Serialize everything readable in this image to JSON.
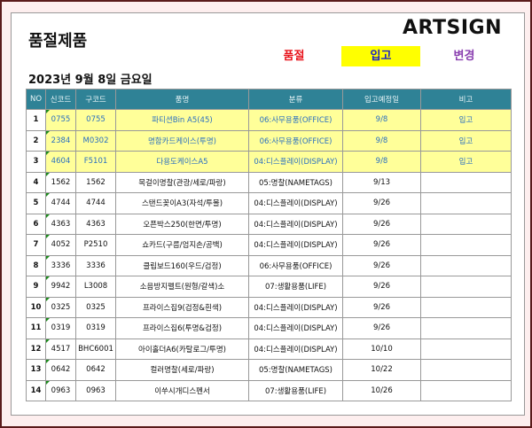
{
  "title": "품절제품",
  "brand": "ARTSIGN",
  "legend": {
    "soldout": "품절",
    "restock": "입고",
    "change": "변경"
  },
  "colors": {
    "soldout": "#e8141c",
    "restock_bg": "#ffff00",
    "restock_text": "#1a20c8",
    "change": "#8a3fb0",
    "header": "#2f8296",
    "highlight": "#ffff99"
  },
  "date": "2023년 9월 8일 금요일",
  "table": {
    "headers": [
      "NO",
      "신코드",
      "구코드",
      "품명",
      "분류",
      "입고예정일",
      "비고"
    ],
    "rows": [
      {
        "no": "1",
        "new": "0755",
        "old": "0755",
        "name": "파티션Bin A5(45)",
        "cat": "06:사무용품(OFFICE)",
        "date": "9/8",
        "note": "입고",
        "hl": true
      },
      {
        "no": "2",
        "new": "2384",
        "old": "M0302",
        "name": "명함카드케이스(투명)",
        "cat": "06:사무용품(OFFICE)",
        "date": "9/8",
        "note": "입고",
        "hl": true
      },
      {
        "no": "3",
        "new": "4604",
        "old": "F5101",
        "name": "다용도케이스A5",
        "cat": "04:디스플레이(DISPLAY)",
        "date": "9/8",
        "note": "입고",
        "hl": true
      },
      {
        "no": "4",
        "new": "1562",
        "old": "1562",
        "name": "목걸이명찰(관광/세로/파랑)",
        "cat": "05:명찰(NAMETAGS)",
        "date": "9/13",
        "note": ""
      },
      {
        "no": "5",
        "new": "4744",
        "old": "4744",
        "name": "스탠드꽂이A3(자석/투몰)",
        "cat": "04:디스플레이(DISPLAY)",
        "date": "9/26",
        "note": ""
      },
      {
        "no": "6",
        "new": "4363",
        "old": "4363",
        "name": "오픈박스250(한면/투명)",
        "cat": "04:디스플레이(DISPLAY)",
        "date": "9/26",
        "note": ""
      },
      {
        "no": "7",
        "new": "4052",
        "old": "P2510",
        "name": "쇼카드(구름/엄지손/공백)",
        "cat": "04:디스플레이(DISPLAY)",
        "date": "9/26",
        "note": ""
      },
      {
        "no": "8",
        "new": "3336",
        "old": "3336",
        "name": "클립보드160(우드/검정)",
        "cat": "06:사무용품(OFFICE)",
        "date": "9/26",
        "note": ""
      },
      {
        "no": "9",
        "new": "9942",
        "old": "L3008",
        "name": "소음방지펠트(원형/갈색)소",
        "cat": "07:생활용품(LIFE)",
        "date": "9/26",
        "note": ""
      },
      {
        "no": "10",
        "new": "0325",
        "old": "0325",
        "name": "프라이스집9(검정&흰색)",
        "cat": "04:디스플레이(DISPLAY)",
        "date": "9/26",
        "note": ""
      },
      {
        "no": "11",
        "new": "0319",
        "old": "0319",
        "name": "프라이스집6(투명&검정)",
        "cat": "04:디스플레이(DISPLAY)",
        "date": "9/26",
        "note": ""
      },
      {
        "no": "12",
        "new": "4517",
        "old": "BHC6001",
        "name": "아이홀더A6(카탈로그/투명)",
        "cat": "04:디스플레이(DISPLAY)",
        "date": "10/10",
        "note": ""
      },
      {
        "no": "13",
        "new": "0642",
        "old": "0642",
        "name": "컬러명찰(세로/파랑)",
        "cat": "05:명찰(NAMETAGS)",
        "date": "10/22",
        "note": ""
      },
      {
        "no": "14",
        "new": "0963",
        "old": "0963",
        "name": "이쑤시개디스펜서",
        "cat": "07:생활용품(LIFE)",
        "date": "10/26",
        "note": ""
      }
    ]
  }
}
